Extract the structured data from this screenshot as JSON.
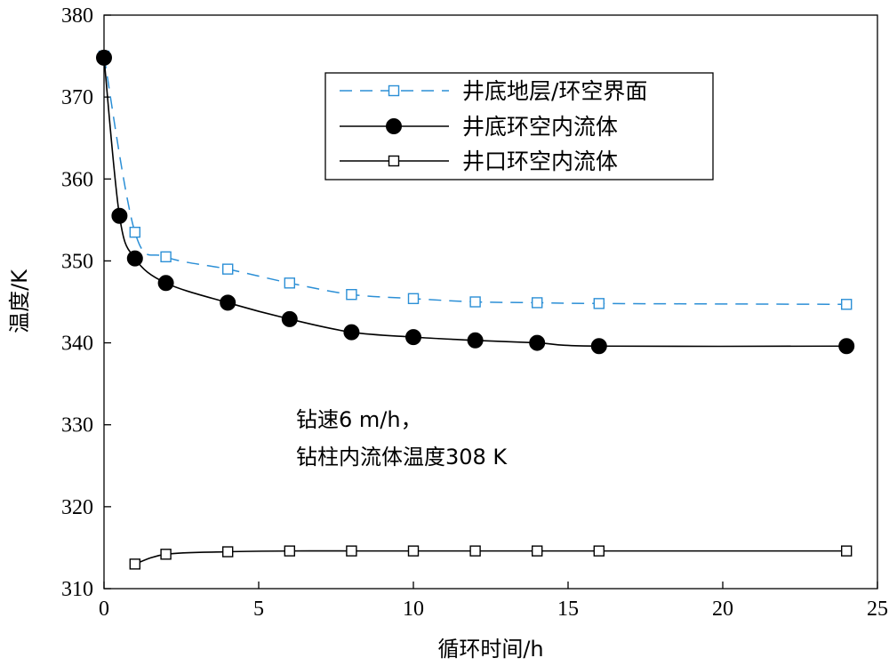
{
  "chart_data": {
    "type": "line",
    "xlabel": "循环时间/h",
    "ylabel": "温度/K",
    "xlim": [
      0,
      25
    ],
    "ylim": [
      310,
      380
    ],
    "xticks": [
      "0",
      "5",
      "10",
      "15",
      "20",
      "25"
    ],
    "yticks": [
      "310",
      "320",
      "330",
      "340",
      "350",
      "360",
      "370",
      "380"
    ],
    "grid": false,
    "legend_position": "top-right",
    "series": [
      {
        "name": "井底地层/环空界面",
        "color": "#2b8fd6",
        "line": "dashed",
        "marker": "open-square",
        "x": [
          0,
          1,
          2,
          4,
          6,
          8,
          10,
          12,
          14,
          16,
          24
        ],
        "y": [
          375,
          353.5,
          350.5,
          349,
          347.3,
          345.9,
          345.4,
          345.0,
          344.9,
          344.8,
          344.7
        ]
      },
      {
        "name": "井底环空内流体",
        "color": "#000000",
        "line": "solid",
        "marker": "filled-circle",
        "x": [
          0,
          0.5,
          1,
          2,
          4,
          6,
          8,
          10,
          12,
          14,
          16,
          24
        ],
        "y": [
          374.8,
          355.5,
          350.3,
          347.3,
          344.9,
          342.9,
          341.3,
          340.7,
          340.3,
          340.0,
          339.6,
          339.6
        ]
      },
      {
        "name": "井口环空内流体",
        "color": "#000000",
        "line": "solid",
        "marker": "open-square",
        "x": [
          1,
          2,
          4,
          6,
          8,
          10,
          12,
          14,
          16,
          24
        ],
        "y": [
          313.0,
          314.2,
          314.5,
          314.6,
          314.6,
          314.6,
          314.6,
          314.6,
          314.6,
          314.6
        ]
      }
    ],
    "annotation": [
      "钻速6 m/h，",
      "钻柱内流体温度308 K"
    ]
  }
}
